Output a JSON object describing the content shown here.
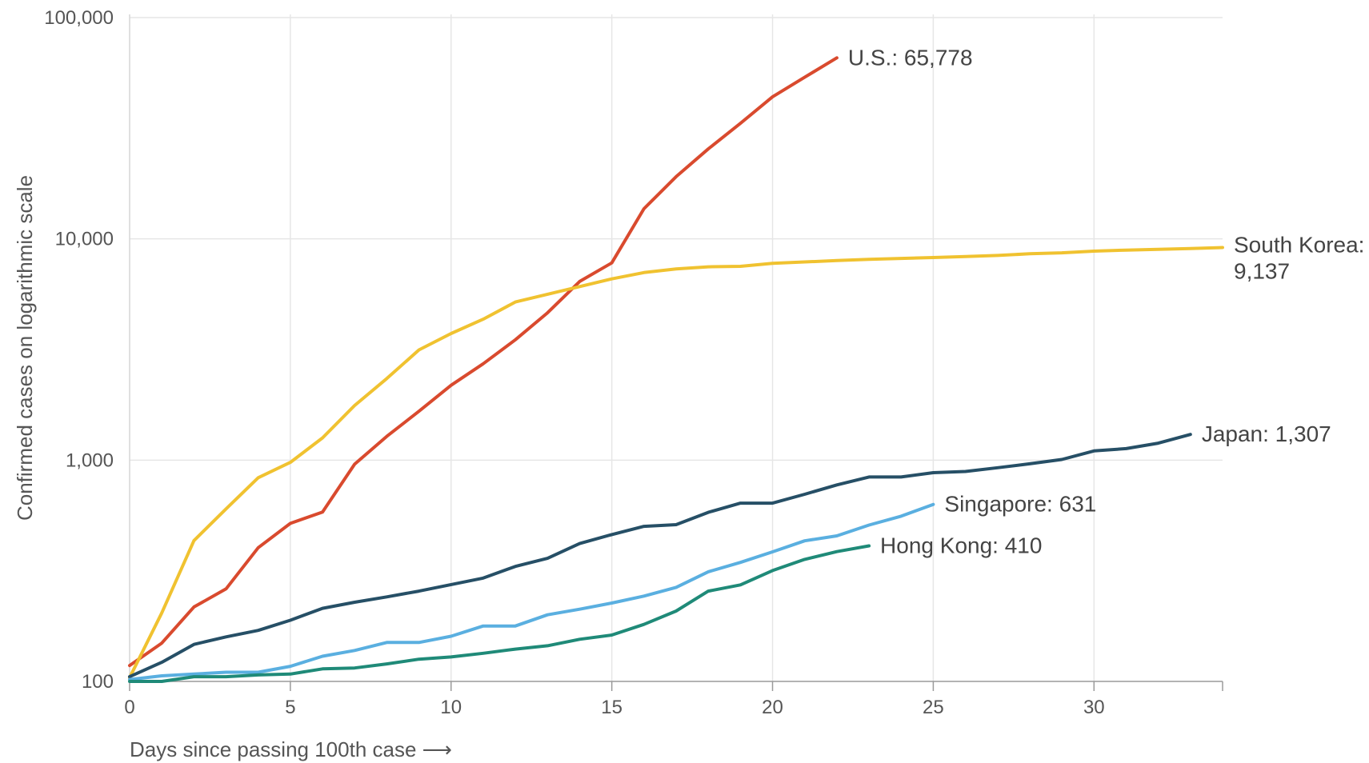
{
  "chart_data": {
    "type": "line",
    "title": "",
    "xlabel": "Days since passing 100th case ⟶",
    "ylabel": "Confirmed cases on logarithmic scale",
    "yscale": "log",
    "ylim": [
      100,
      100000
    ],
    "xlim": [
      0,
      34
    ],
    "grid": true,
    "legend": "none (direct labels at line ends)",
    "x_ticks": [
      {
        "value": 0,
        "label": "0"
      },
      {
        "value": 5,
        "label": "5"
      },
      {
        "value": 10,
        "label": "10"
      },
      {
        "value": 15,
        "label": "15"
      },
      {
        "value": 20,
        "label": "20"
      },
      {
        "value": 25,
        "label": "25"
      },
      {
        "value": 30,
        "label": "30"
      }
    ],
    "y_ticks": [
      {
        "value": 100,
        "label": "100"
      },
      {
        "value": 1000,
        "label": "1,000"
      },
      {
        "value": 10000,
        "label": "10,000"
      },
      {
        "value": 100000,
        "label": "100,000"
      }
    ],
    "series": [
      {
        "id": "us",
        "label": [
          "U.S.: 65,778"
        ],
        "color": "#d94a2e",
        "x": [
          0,
          1,
          2,
          3,
          4,
          5,
          6,
          7,
          8,
          9,
          10,
          11,
          12,
          13,
          14,
          15,
          16,
          17,
          18,
          19,
          20,
          21,
          22
        ],
        "values": [
          118,
          149,
          217,
          262,
          402,
          518,
          583,
          959,
          1281,
          1663,
          2179,
          2727,
          3499,
          4632,
          6421,
          7786,
          13680,
          19100,
          25489,
          33276,
          43847,
          53740,
          65778
        ]
      },
      {
        "id": "south-korea",
        "label": [
          "South Korea:",
          "9,137"
        ],
        "color": "#f0c230",
        "x": [
          0,
          1,
          2,
          3,
          4,
          5,
          6,
          7,
          8,
          9,
          10,
          11,
          12,
          13,
          14,
          15,
          16,
          17,
          18,
          19,
          20,
          21,
          22,
          23,
          24,
          25,
          26,
          27,
          28,
          29,
          30,
          31,
          32,
          33,
          34
        ],
        "values": [
          104,
          204,
          433,
          602,
          833,
          977,
          1261,
          1766,
          2337,
          3150,
          3736,
          4335,
          5186,
          5621,
          6088,
          6593,
          7041,
          7313,
          7478,
          7513,
          7755,
          7869,
          7979,
          8086,
          8162,
          8236,
          8320,
          8413,
          8565,
          8652,
          8799,
          8897,
          8961,
          9037,
          9137
        ]
      },
      {
        "id": "japan",
        "label": [
          "Japan: 1,307"
        ],
        "color": "#264f66",
        "x": [
          0,
          1,
          2,
          3,
          4,
          5,
          6,
          7,
          8,
          9,
          10,
          11,
          12,
          13,
          14,
          15,
          16,
          17,
          18,
          19,
          20,
          21,
          22,
          23,
          24,
          25,
          26,
          27,
          28,
          29,
          30,
          31,
          32,
          33
        ],
        "values": [
          105,
          122,
          147,
          159,
          170,
          189,
          214,
          228,
          241,
          256,
          274,
          293,
          331,
          360,
          420,
          461,
          502,
          511,
          581,
          639,
          639,
          701,
          773,
          839,
          839,
          878,
          889,
          924,
          963,
          1007,
          1101,
          1128,
          1193,
          1307
        ]
      },
      {
        "id": "singapore",
        "label": [
          "Singapore: 631"
        ],
        "color": "#5aafe0",
        "x": [
          0,
          1,
          2,
          3,
          4,
          5,
          6,
          7,
          8,
          9,
          10,
          11,
          12,
          13,
          14,
          15,
          16,
          17,
          18,
          19,
          20,
          21,
          22,
          23,
          24,
          25
        ],
        "values": [
          102,
          106,
          108,
          110,
          110,
          117,
          130,
          138,
          150,
          150,
          160,
          178,
          178,
          200,
          212,
          226,
          243,
          266,
          313,
          345,
          385,
          432,
          455,
          509,
          558,
          631
        ]
      },
      {
        "id": "hong-kong",
        "label": [
          "Hong Kong: 410"
        ],
        "color": "#1f8a78",
        "x": [
          0,
          1,
          2,
          3,
          4,
          5,
          6,
          7,
          8,
          9,
          10,
          11,
          12,
          13,
          14,
          15,
          16,
          17,
          18,
          19,
          20,
          21,
          22,
          23
        ],
        "values": [
          100,
          100,
          105,
          105,
          107,
          108,
          114,
          115,
          120,
          126,
          129,
          134,
          140,
          145,
          155,
          162,
          181,
          208,
          256,
          273,
          317,
          356,
          386,
          410
        ]
      }
    ]
  }
}
